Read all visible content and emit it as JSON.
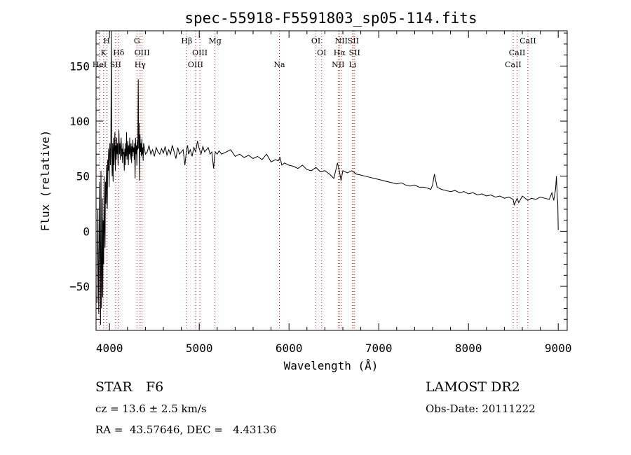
{
  "chart_data": {
    "type": "line",
    "title": "spec-55918-F5591803_sp05-114.fits",
    "xlabel": "Wavelength (Å)",
    "ylabel": "Flux (relative)",
    "xlim": [
      3850,
      9100
    ],
    "ylim": [
      -90,
      182
    ],
    "xticks": [
      4000,
      5000,
      6000,
      7000,
      8000,
      9000
    ],
    "yticks": [
      -50,
      0,
      50,
      100,
      150
    ],
    "grid": false,
    "line_color": "#000000",
    "marker_color": "#cc0000",
    "series": [
      {
        "x": [
          3860,
          3870,
          3880,
          3890,
          3900,
          3905,
          3910,
          3915,
          3920,
          3925,
          3930,
          3935,
          3940,
          3945,
          3950,
          3955,
          3960,
          3965,
          3970,
          3975,
          3980,
          3985,
          3990,
          3995,
          4000,
          4005,
          4010,
          4015,
          4020,
          4025,
          4030,
          4035,
          4040,
          4045,
          4050,
          4055,
          4060,
          4065,
          4070,
          4075,
          4080,
          4085,
          4090,
          4095,
          4100,
          4105,
          4110,
          4115,
          4120,
          4125,
          4130,
          4135,
          4140,
          4145,
          4150,
          4155,
          4160,
          4165,
          4170,
          4175,
          4180,
          4185,
          4190,
          4195,
          4200,
          4205,
          4210,
          4215,
          4220,
          4225,
          4230,
          4235,
          4240,
          4245,
          4250,
          4255,
          4260,
          4265,
          4270,
          4275,
          4280,
          4285,
          4290,
          4295,
          4300,
          4305,
          4310,
          4315,
          4320,
          4325,
          4330,
          4335,
          4340,
          4345,
          4350,
          4355,
          4360,
          4365,
          4370,
          4375,
          4380,
          4400,
          4420,
          4440,
          4460,
          4480,
          4500,
          4520,
          4540,
          4560,
          4580,
          4600,
          4620,
          4640,
          4660,
          4680,
          4700,
          4720,
          4740,
          4760,
          4780,
          4800,
          4820,
          4840,
          4860,
          4870,
          4880,
          4900,
          4920,
          4940,
          4960,
          4980,
          5000,
          5020,
          5040,
          5060,
          5080,
          5100,
          5120,
          5140,
          5160,
          5170,
          5180,
          5200,
          5220,
          5250,
          5300,
          5350,
          5400,
          5450,
          5500,
          5550,
          5600,
          5650,
          5700,
          5750,
          5800,
          5850,
          5880,
          5900,
          5920,
          5950,
          6000,
          6050,
          6100,
          6150,
          6200,
          6250,
          6300,
          6350,
          6400,
          6450,
          6500,
          6540,
          6563,
          6580,
          6600,
          6650,
          6700,
          6750,
          6800,
          6850,
          6900,
          6950,
          7000,
          7050,
          7100,
          7150,
          7200,
          7250,
          7300,
          7350,
          7400,
          7450,
          7500,
          7550,
          7580,
          7600,
          7620,
          7650,
          7700,
          7750,
          7800,
          7850,
          7900,
          7950,
          8000,
          8050,
          8100,
          8150,
          8200,
          8250,
          8300,
          8350,
          8400,
          8450,
          8498,
          8510,
          8542,
          8560,
          8600,
          8662,
          8700,
          8750,
          8800,
          8850,
          8900,
          8930,
          8950,
          8970,
          8980,
          8990,
          8995,
          9000
        ],
        "y": [
          -65,
          20,
          -75,
          45,
          -85,
          55,
          -70,
          -40,
          30,
          -60,
          10,
          -30,
          50,
          0,
          -15,
          45,
          25,
          60,
          35,
          20,
          65,
          55,
          75,
          40,
          70,
          80,
          60,
          75,
          182,
          70,
          50,
          80,
          45,
          85,
          60,
          75,
          90,
          55,
          78,
          65,
          85,
          70,
          80,
          60,
          75,
          92,
          70,
          80,
          65,
          78,
          85,
          68,
          75,
          62,
          80,
          70,
          72,
          55,
          75,
          60,
          80,
          68,
          90,
          65,
          74,
          82,
          60,
          78,
          70,
          85,
          65,
          74,
          80,
          62,
          77,
          68,
          83,
          72,
          76,
          65,
          80,
          48,
          85,
          70,
          78,
          60,
          82,
          74,
          138,
          75,
          98,
          46,
          88,
          72,
          80,
          68,
          84,
          70,
          76,
          64,
          80,
          70,
          72,
          78,
          70,
          74,
          68,
          76,
          72,
          70,
          75,
          71,
          77,
          69,
          74,
          70,
          78,
          72,
          66,
          76,
          70,
          72,
          74,
          60,
          75,
          78,
          70,
          74,
          68,
          76,
          72,
          82,
          75,
          70,
          77,
          72,
          74,
          76,
          70,
          72,
          57,
          68,
          72,
          70,
          73,
          70,
          72,
          74,
          68,
          70,
          67,
          69,
          66,
          68,
          65,
          70,
          63,
          65,
          64,
          67,
          60,
          62,
          60,
          59,
          57,
          60,
          56,
          55,
          58,
          54,
          55,
          52,
          48,
          62,
          54,
          46,
          55,
          53,
          55,
          52,
          51,
          50,
          49,
          48,
          47,
          46,
          45,
          44,
          43,
          44,
          42,
          41,
          42,
          40,
          40,
          39,
          38,
          42,
          52,
          40,
          38,
          37,
          36,
          37,
          35,
          36,
          34,
          35,
          33,
          34,
          32,
          33,
          31,
          32,
          30,
          31,
          29,
          24,
          30,
          26,
          32,
          28,
          30,
          29,
          31,
          30,
          29,
          35,
          28,
          38,
          50,
          30,
          25,
          1
        ]
      }
    ],
    "line_markers": [
      {
        "x": 3889,
        "label": "HeI",
        "row": 3
      },
      {
        "x": 3934,
        "label": "K",
        "row": 2
      },
      {
        "x": 3969,
        "label": "H",
        "row": 1
      },
      {
        "x": 4068,
        "label": "SII",
        "row": 3
      },
      {
        "x": 4102,
        "label": "Hδ",
        "row": 2
      },
      {
        "x": 4305,
        "label": "G",
        "row": 1
      },
      {
        "x": 4341,
        "label": "Hγ",
        "row": 3
      },
      {
        "x": 4363,
        "label": "OIII",
        "row": 2
      },
      {
        "x": 4861,
        "label": "Hβ",
        "row": 1
      },
      {
        "x": 4959,
        "label": "OIII",
        "row": 3
      },
      {
        "x": 5007,
        "label": "OIII",
        "row": 2
      },
      {
        "x": 5175,
        "label": "Mg",
        "row": 1
      },
      {
        "x": 5893,
        "label": "Na",
        "row": 3
      },
      {
        "x": 6300,
        "label": "OI",
        "row": 1
      },
      {
        "x": 6364,
        "label": "OI",
        "row": 2
      },
      {
        "x": 6548,
        "label": "NII",
        "row": 3
      },
      {
        "x": 6563,
        "label": "Hα",
        "row": 2
      },
      {
        "x": 6583,
        "label": "NII",
        "row": 1
      },
      {
        "x": 6716,
        "label": "SII",
        "row": 1
      },
      {
        "x": 6708,
        "label": "Li",
        "row": 3
      },
      {
        "x": 6731,
        "label": "SII",
        "row": 2
      },
      {
        "x": 8498,
        "label": "CaII",
        "row": 3
      },
      {
        "x": 8542,
        "label": "CaII",
        "row": 2
      },
      {
        "x": 8662,
        "label": "CaII",
        "row": 1
      }
    ]
  },
  "info": {
    "class_label": "STAR",
    "subclass": "F6",
    "survey": "LAMOST DR2",
    "cz": "cz = 13.6 ± 2.5 km/s",
    "obs_date": "Obs-Date: 20111222",
    "coords": "RA =  43.57646, DEC =   4.43136"
  }
}
